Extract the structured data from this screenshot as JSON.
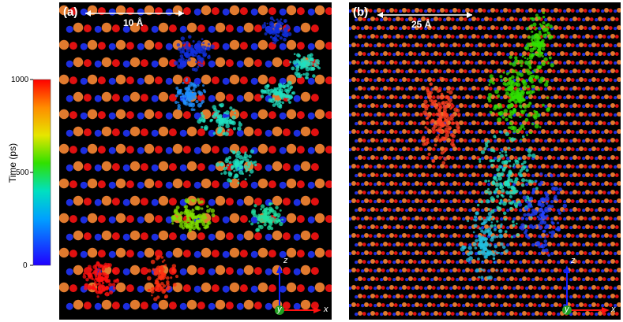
{
  "colorbar": {
    "title": "Time (ps)",
    "ticks": [
      "1000",
      "500",
      "0"
    ],
    "range": [
      0,
      1000
    ]
  },
  "panel_a": {
    "label": "(a)",
    "scale_bar": "10 Å",
    "axes": {
      "z": "z",
      "y": "y",
      "x": "x"
    }
  },
  "panel_b": {
    "label": "(b)",
    "scale_bar": "25 Å",
    "axes": {
      "z": "z",
      "y": "y",
      "x": "x"
    }
  },
  "colors": {
    "orange_atom": "#e07a2e",
    "red_atom": "#e01010",
    "blue_atom": "#1c2ee0",
    "background": "#000000"
  }
}
